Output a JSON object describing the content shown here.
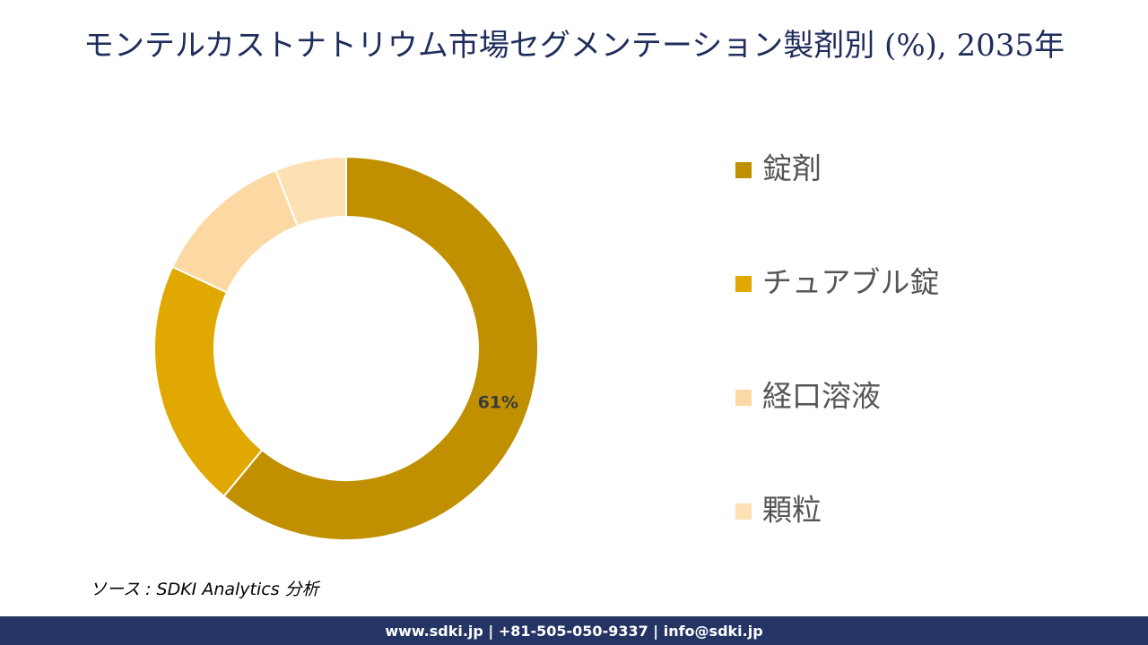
{
  "chart_data": {
    "type": "donut",
    "title": "モンテルカストナトリウム市場セグメンテーション製剤別 (%), 2035年",
    "categories": [
      "錠剤",
      "チュアブル錠",
      "経口溶液",
      "顆粒"
    ],
    "values": [
      61,
      21,
      12,
      6
    ],
    "value_labels": [
      "61%",
      null,
      null,
      null
    ],
    "colors": [
      "#c09000",
      "#e0a800",
      "#fcd8a3",
      "#fde0b3"
    ]
  },
  "source": "ソース : SDKI Analytics 分析",
  "footer": "www.sdki.jp | +81-505-050-9337 | info@sdki.jp"
}
